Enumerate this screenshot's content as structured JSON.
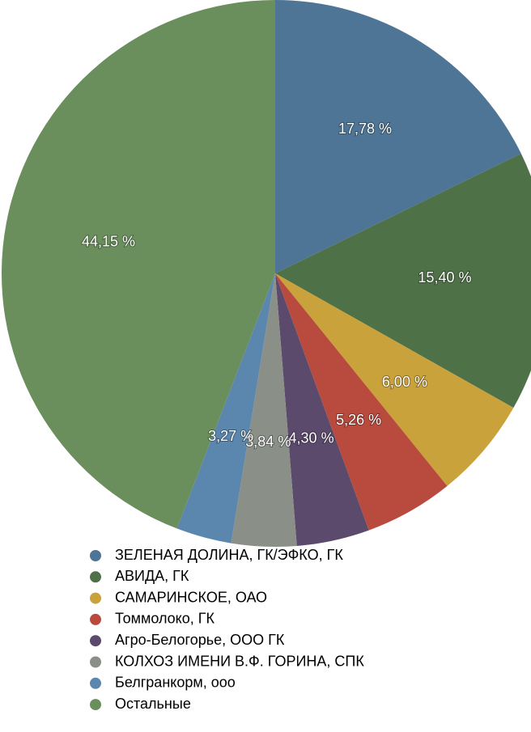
{
  "chart_data": {
    "type": "pie",
    "categories": [
      "ЗЕЛЕНАЯ ДОЛИНА, ГК/ЭФКО, ГК",
      "АВИДА, ГК",
      "САМАРИНСКОЕ, ОАО",
      "Томмолоко, ГК",
      "Агро-Белогорье, ООО ГК",
      "КОЛХОЗ ИМЕНИ В.Ф. ГОРИНА, СПК",
      "Белгранкорм, ооо",
      "Остальные"
    ],
    "values": [
      17.78,
      15.4,
      6.0,
      5.26,
      4.3,
      3.84,
      3.27,
      44.15
    ],
    "value_labels": [
      "17,78 %",
      "15,40 %",
      "6,00 %",
      "5,26 %",
      "4,30 %",
      "3,84 %",
      "3,27 %",
      "44,15 %"
    ],
    "colors": [
      "#4e7595",
      "#4f7148",
      "#c9a23c",
      "#b94b3e",
      "#5c4a6d",
      "#8a8f88",
      "#5b86ad",
      "#6a8f5c"
    ]
  }
}
